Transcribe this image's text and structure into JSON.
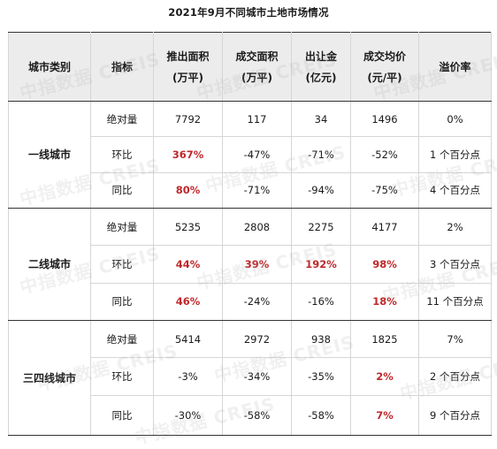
{
  "title": "2021年9月不同城市土地市场情况",
  "headers": {
    "category": "城市类别",
    "metric": "指标",
    "supply": [
      "推出面积",
      "(万平)"
    ],
    "transaction": [
      "成交面积",
      "(万平)"
    ],
    "revenue": [
      "出让金",
      "(亿元)"
    ],
    "avg_price": [
      "成交均价",
      "(元/平)"
    ],
    "premium": "溢价率"
  },
  "groups": [
    {
      "category": "一线城市",
      "rows": [
        {
          "metric": "绝对量",
          "cells": [
            [
              "7792",
              false
            ],
            [
              "117",
              false
            ],
            [
              "34",
              false
            ],
            [
              "1496",
              false
            ],
            [
              "0%",
              false
            ]
          ]
        },
        {
          "metric": "环比",
          "cells": [
            [
              "367%",
              true
            ],
            [
              "-47%",
              false
            ],
            [
              "-71%",
              false
            ],
            [
              "-52%",
              false
            ],
            [
              "1 个百分点",
              false
            ]
          ]
        },
        {
          "metric": "同比",
          "cells": [
            [
              "80%",
              true
            ],
            [
              "-71%",
              false
            ],
            [
              "-94%",
              false
            ],
            [
              "-75%",
              false
            ],
            [
              "4 个百分点",
              false
            ]
          ]
        }
      ]
    },
    {
      "category": "二线城市",
      "rows": [
        {
          "metric": "绝对量",
          "cells": [
            [
              "5235",
              false
            ],
            [
              "2808",
              false
            ],
            [
              "2275",
              false
            ],
            [
              "4177",
              false
            ],
            [
              "2%",
              false
            ]
          ]
        },
        {
          "metric": "环比",
          "cells": [
            [
              "44%",
              true
            ],
            [
              "39%",
              true
            ],
            [
              "192%",
              true
            ],
            [
              "98%",
              true
            ],
            [
              "3 个百分点",
              false
            ]
          ]
        },
        {
          "metric": "同比",
          "cells": [
            [
              "46%",
              true
            ],
            [
              "-24%",
              false
            ],
            [
              "-16%",
              false
            ],
            [
              "18%",
              true
            ],
            [
              "11 个百分点",
              false
            ]
          ]
        }
      ]
    },
    {
      "category": "三四线城市",
      "rows": [
        {
          "metric": "绝对量",
          "cells": [
            [
              "5414",
              false
            ],
            [
              "2972",
              false
            ],
            [
              "938",
              false
            ],
            [
              "1825",
              false
            ],
            [
              "7%",
              false
            ]
          ]
        },
        {
          "metric": "环比",
          "cells": [
            [
              "-3%",
              false
            ],
            [
              "-34%",
              false
            ],
            [
              "-35%",
              false
            ],
            [
              "2%",
              true
            ],
            [
              "2 个百分点",
              false
            ]
          ]
        },
        {
          "metric": "同比",
          "cells": [
            [
              "-30%",
              false
            ],
            [
              "-58%",
              false
            ],
            [
              "-58%",
              false
            ],
            [
              "7%",
              true
            ],
            [
              "9 个百分点",
              false
            ]
          ]
        }
      ]
    }
  ],
  "watermark": "中指数据 CREIS",
  "colors": {
    "highlight": "#c0282b",
    "header_bg": "#ececec"
  }
}
